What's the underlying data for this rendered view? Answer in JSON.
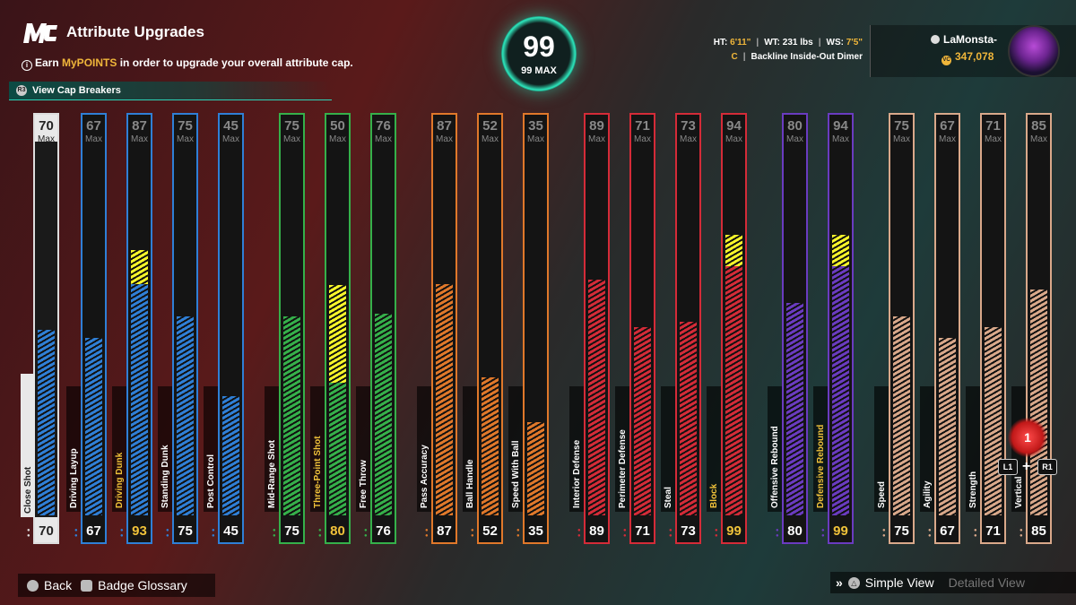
{
  "header": {
    "title": "Attribute Upgrades",
    "subtitle_prefix": "Earn ",
    "subtitle_highlight": "MyPOINTS",
    "subtitle_suffix": " in order to upgrade your overall attribute cap.",
    "cap_breakers_label": "View Cap Breakers"
  },
  "overall": {
    "value": "99",
    "max_label": "99 MAX"
  },
  "player": {
    "ht_label": "HT:",
    "ht_value": "6'11\"",
    "wt_label": "WT:",
    "wt_value": "231 lbs",
    "ws_label": "WS:",
    "ws_value": "7'5\"",
    "position": "C",
    "archetype": "Backline Inside-Out Dimer",
    "gamertag": "LaMonsta-",
    "vc_balance": "347,078"
  },
  "colors": {
    "white": "#dddddd",
    "blue": "#2f7fd6",
    "green": "#35b04a",
    "orange": "#e0782a",
    "red": "#d42b38",
    "purple": "#6a3bc0",
    "tan": "#d9a88a",
    "boost": "#f7f52a"
  },
  "max_label": "Max",
  "attributes": [
    {
      "name": "Close Shot",
      "cap": 70,
      "current": 70,
      "group": "white",
      "boosted": false
    },
    {
      "name": "Driving Layup",
      "cap": 67,
      "current": 67,
      "group": "blue",
      "boosted": false
    },
    {
      "name": "Driving Dunk",
      "cap": 87,
      "current": 93,
      "group": "blue",
      "boosted": true
    },
    {
      "name": "Standing Dunk",
      "cap": 75,
      "current": 75,
      "group": "blue",
      "boosted": false
    },
    {
      "name": "Post Control",
      "cap": 45,
      "current": 45,
      "group": "blue",
      "boosted": false
    },
    {
      "name": "Mid-Range Shot",
      "cap": 75,
      "current": 75,
      "group": "green",
      "boosted": false
    },
    {
      "name": "Three-Point Shot",
      "cap": 50,
      "current": 80,
      "group": "green",
      "boosted": true
    },
    {
      "name": "Free Throw",
      "cap": 76,
      "current": 76,
      "group": "green",
      "boosted": false
    },
    {
      "name": "Pass Accuracy",
      "cap": 87,
      "current": 87,
      "group": "orange",
      "boosted": false
    },
    {
      "name": "Ball Handle",
      "cap": 52,
      "current": 52,
      "group": "orange",
      "boosted": false
    },
    {
      "name": "Speed With Ball",
      "cap": 35,
      "current": 35,
      "group": "orange",
      "boosted": false
    },
    {
      "name": "Interior Defense",
      "cap": 89,
      "current": 89,
      "group": "red",
      "boosted": false
    },
    {
      "name": "Perimeter Defense",
      "cap": 71,
      "current": 71,
      "group": "red",
      "boosted": false
    },
    {
      "name": "Steal",
      "cap": 73,
      "current": 73,
      "group": "red",
      "boosted": false
    },
    {
      "name": "Block",
      "cap": 94,
      "current": 99,
      "group": "red",
      "boosted": true
    },
    {
      "name": "Offensive Rebound",
      "cap": 80,
      "current": 80,
      "group": "purple",
      "boosted": false
    },
    {
      "name": "Defensive Rebound",
      "cap": 94,
      "current": 99,
      "group": "purple",
      "boosted": true
    },
    {
      "name": "Speed",
      "cap": 75,
      "current": 75,
      "group": "tan",
      "boosted": false
    },
    {
      "name": "Agility",
      "cap": 67,
      "current": 67,
      "group": "tan",
      "boosted": false
    },
    {
      "name": "Strength",
      "cap": 71,
      "current": 71,
      "group": "tan",
      "boosted": false
    },
    {
      "name": "Vertical",
      "cap": 85,
      "current": 85,
      "group": "tan",
      "boosted": false
    }
  ],
  "scroll_indicator": {
    "value": "1",
    "left_btn": "L1",
    "right_btn": "R1",
    "plus": "+"
  },
  "footer": {
    "back_label": "Back",
    "glossary_label": "Badge Glossary",
    "view_chevron": "»",
    "simple_view_label": "Simple View",
    "detailed_view_label": "Detailed View"
  }
}
